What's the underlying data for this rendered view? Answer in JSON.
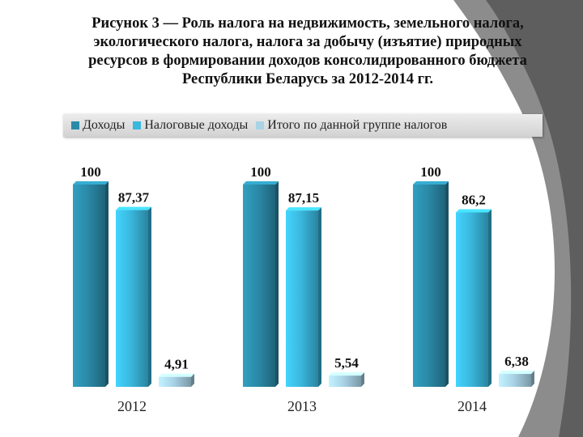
{
  "title_lines": [
    "Рисунок 3 — Роль налога на недвижимость, земельного налога,",
    "экологического налога, налога за добычу (изъятие) природных",
    "ресурсов в формировании доходов консолидированного бюджета",
    "Республики Беларусь за 2012-2014 гг."
  ],
  "chart_data": {
    "type": "bar",
    "categories": [
      "2012",
      "2013",
      "2014"
    ],
    "series": [
      {
        "name": "Доходы",
        "values": [
          100,
          100,
          100
        ],
        "labels": [
          "100",
          "100",
          "100"
        ],
        "color": "#2b8aa8"
      },
      {
        "name": "Налоговые доходы",
        "values": [
          87.37,
          87.15,
          86.2
        ],
        "labels": [
          "87,37",
          "87,15",
          "86,2"
        ],
        "color": "#3ab8de"
      },
      {
        "name": "Итого по данной группе налогов",
        "values": [
          4.91,
          5.54,
          6.38
        ],
        "labels": [
          "4,91",
          "5,54",
          "6,38"
        ],
        "color": "#a9d3e6"
      }
    ],
    "ylim": [
      0,
      100
    ],
    "grid": false,
    "legend_position": "top",
    "bar_style": "3d-cylinder-box"
  }
}
